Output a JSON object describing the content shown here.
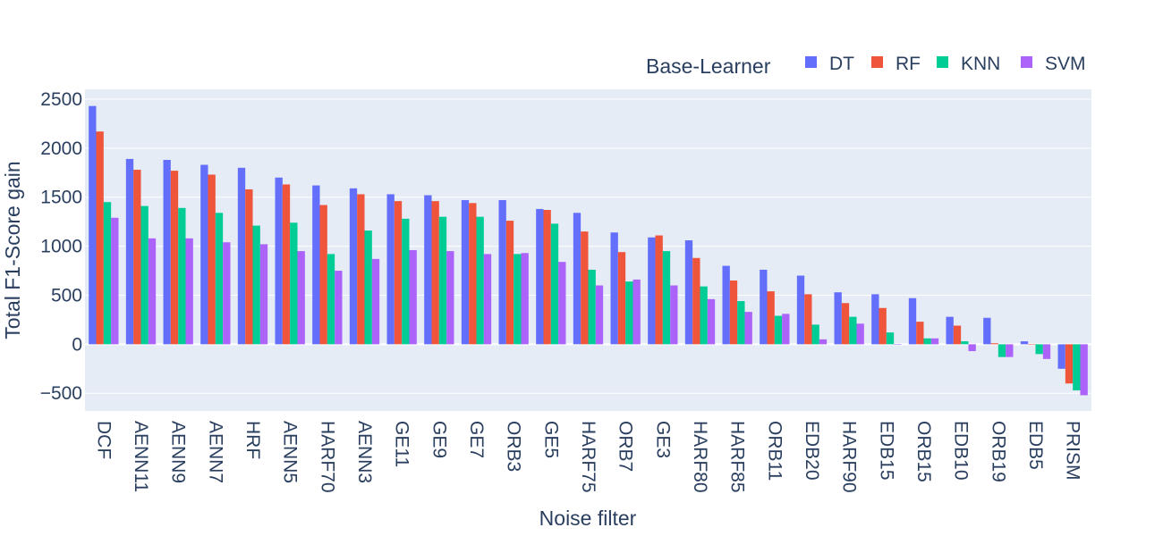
{
  "chart_data": {
    "type": "bar",
    "title": "",
    "xlabel": "Noise filter",
    "ylabel": "Total F1-Score gain",
    "ylim": [
      -680,
      2600
    ],
    "yticks": [
      -500,
      0,
      500,
      1000,
      1500,
      2000,
      2500
    ],
    "ytick_labels": [
      "−500",
      "0",
      "500",
      "1000",
      "1500",
      "2000",
      "2500"
    ],
    "grid": true,
    "legend": {
      "title": "Base-Learner",
      "placement": "top-right",
      "orientation": "horizontal"
    },
    "categories": [
      "DCF",
      "AENN11",
      "AENN9",
      "AENN7",
      "HRF",
      "AENN5",
      "HARF70",
      "AENN3",
      "GE11",
      "GE9",
      "GE7",
      "ORB3",
      "GE5",
      "HARF75",
      "ORB7",
      "GE3",
      "HARF80",
      "HARF85",
      "ORB11",
      "EDB20",
      "HARF90",
      "EDB15",
      "ORB15",
      "EDB10",
      "ORB19",
      "EDB5",
      "PRISM"
    ],
    "series": [
      {
        "name": "DT",
        "color": "#636efa",
        "values": [
          2430,
          1890,
          1880,
          1830,
          1800,
          1700,
          1620,
          1590,
          1530,
          1520,
          1470,
          1470,
          1380,
          1340,
          1140,
          1090,
          1060,
          800,
          760,
          700,
          530,
          510,
          470,
          280,
          270,
          30,
          -250
        ]
      },
      {
        "name": "RF",
        "color": "#ef553b",
        "values": [
          2170,
          1780,
          1770,
          1730,
          1580,
          1630,
          1420,
          1530,
          1460,
          1460,
          1440,
          1260,
          1370,
          1150,
          940,
          1110,
          880,
          650,
          540,
          510,
          420,
          370,
          230,
          190,
          10,
          0,
          -400
        ]
      },
      {
        "name": "KNN",
        "color": "#00cc96",
        "values": [
          1450,
          1410,
          1390,
          1340,
          1210,
          1240,
          920,
          1160,
          1280,
          1300,
          1300,
          920,
          1230,
          760,
          640,
          950,
          590,
          440,
          290,
          200,
          280,
          120,
          60,
          30,
          -130,
          -100,
          -470
        ]
      },
      {
        "name": "SVM",
        "color": "#ab63fa",
        "values": [
          1290,
          1080,
          1080,
          1040,
          1020,
          950,
          750,
          870,
          960,
          950,
          920,
          930,
          840,
          600,
          660,
          600,
          460,
          330,
          310,
          50,
          210,
          0,
          60,
          -70,
          -130,
          -150,
          -520
        ]
      }
    ]
  }
}
